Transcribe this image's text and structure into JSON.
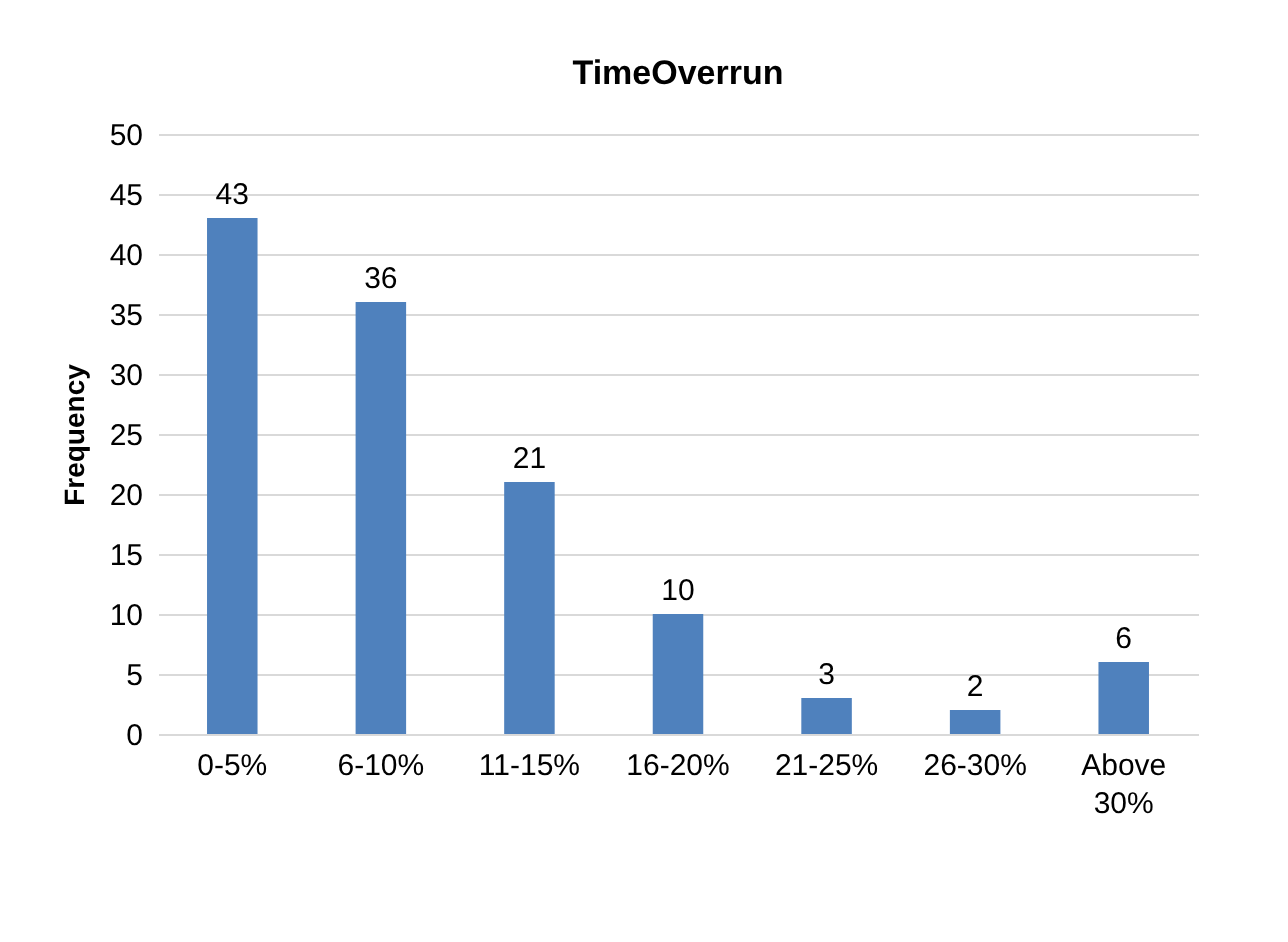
{
  "chart_data": {
    "type": "bar",
    "title": "TimeOverrun",
    "ylabel": "Frequency",
    "categories": [
      "0-5%",
      "6-10%",
      "11-15%",
      "16-20%",
      "21-25%",
      "26-30%",
      "Above 30%"
    ],
    "values": [
      43,
      36,
      21,
      10,
      3,
      2,
      6
    ],
    "color": "#4f81bd",
    "ylim": [
      0,
      50
    ],
    "yticks": [
      0,
      5,
      10,
      15,
      20,
      25,
      30,
      35,
      40,
      45,
      50
    ],
    "grid": "y",
    "data_labels": true
  }
}
